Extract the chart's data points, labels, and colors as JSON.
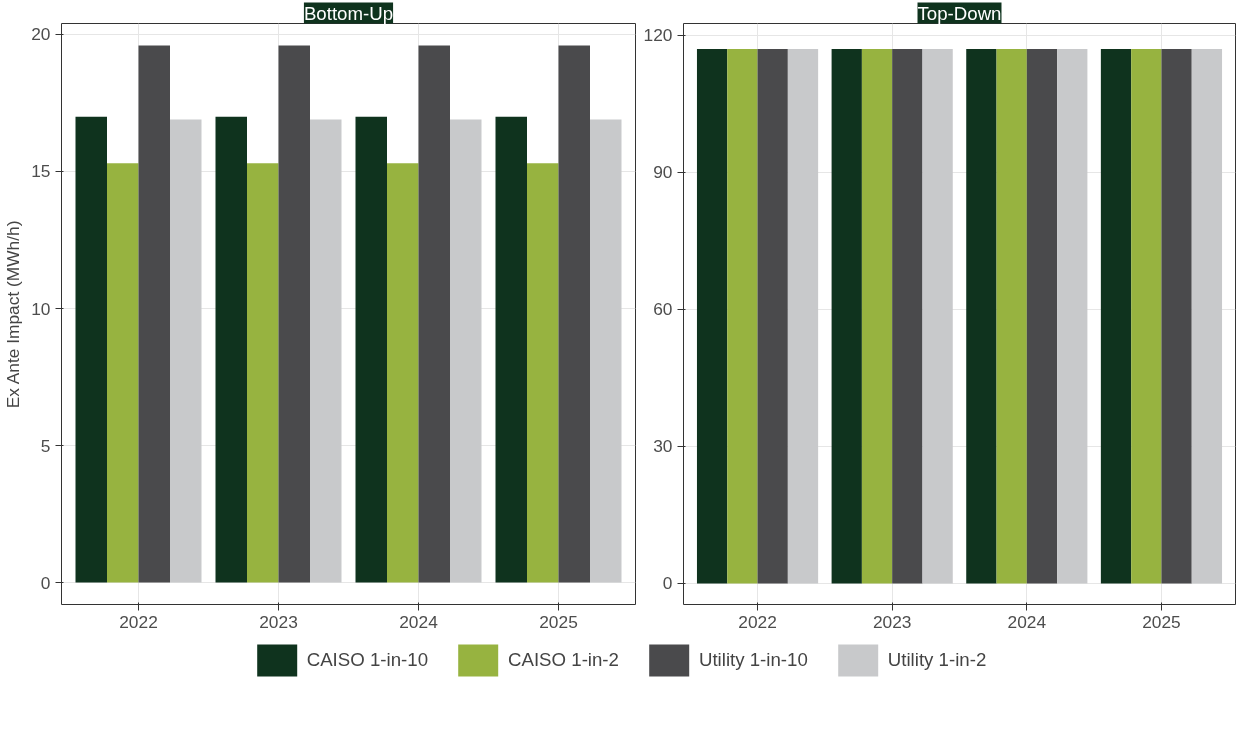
{
  "chart_data": [
    {
      "type": "bar",
      "title": "Bottom-Up",
      "ylabel": "Ex Ante Impact (MWh/h)",
      "categories": [
        "2022",
        "2023",
        "2024",
        "2025"
      ],
      "series": [
        {
          "name": "CAISO 1-in-10",
          "color": "#0f331e",
          "values": [
            17.0,
            17.0,
            17.0,
            17.0
          ]
        },
        {
          "name": "CAISO 1-in-2",
          "color": "#97b340",
          "values": [
            15.3,
            15.3,
            15.3,
            15.3
          ]
        },
        {
          "name": "Utility 1-in-10",
          "color": "#4a4a4c",
          "values": [
            19.6,
            19.6,
            19.6,
            19.6
          ]
        },
        {
          "name": "Utility 1-in-2",
          "color": "#c8c9cb",
          "values": [
            16.9,
            16.9,
            16.9,
            16.9
          ]
        }
      ],
      "ylim": [
        -0.8,
        20.4
      ],
      "yticks": [
        0,
        5,
        10,
        15,
        20
      ],
      "grid": true,
      "legend": "bottom"
    },
    {
      "type": "bar",
      "title": "Top-Down",
      "categories": [
        "2022",
        "2023",
        "2024",
        "2025"
      ],
      "series": [
        {
          "color": "#0f331e",
          "values": [
            117,
            117,
            117,
            117
          ]
        },
        {
          "color": "#97b340",
          "values": [
            117,
            117,
            117,
            117
          ]
        },
        {
          "color": "#4a4a4c",
          "values": [
            117,
            117,
            117,
            117
          ]
        },
        {
          "color": "#c8c9cb",
          "values": [
            117,
            117,
            117,
            117
          ]
        }
      ],
      "ylim": [
        -4.6,
        122.6
      ],
      "yticks": [
        0,
        30,
        60,
        90,
        120
      ],
      "grid": true
    }
  ]
}
